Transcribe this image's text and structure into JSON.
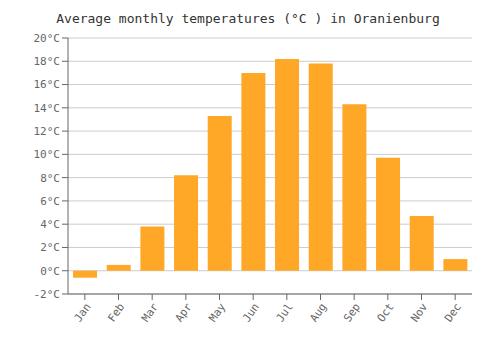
{
  "chart_data": {
    "type": "bar",
    "title": "Average monthly temperatures (°C ) in Oranienburg",
    "categories": [
      "Jan",
      "Feb",
      "Mar",
      "Apr",
      "May",
      "Jun",
      "Jul",
      "Aug",
      "Sep",
      "Oct",
      "Nov",
      "Dec"
    ],
    "values": [
      -0.6,
      0.5,
      3.8,
      8.2,
      13.3,
      17.0,
      18.2,
      17.8,
      14.3,
      9.7,
      4.7,
      1.0
    ],
    "color": "#FFA726",
    "ylim": [
      -2,
      20
    ],
    "yticks": [
      {
        "value": -2,
        "label": "-2°C"
      },
      {
        "value": 0,
        "label": "0°C"
      },
      {
        "value": 2,
        "label": "2°C"
      },
      {
        "value": 4,
        "label": "4°C"
      },
      {
        "value": 6,
        "label": "6°C"
      },
      {
        "value": 8,
        "label": "8°C"
      },
      {
        "value": 10,
        "label": "10°C"
      },
      {
        "value": 12,
        "label": "12°C"
      },
      {
        "value": 14,
        "label": "14°C"
      },
      {
        "value": 16,
        "label": "16°C"
      },
      {
        "value": 18,
        "label": "18°C"
      },
      {
        "value": 20,
        "label": "20°C"
      }
    ],
    "grid": true
  }
}
